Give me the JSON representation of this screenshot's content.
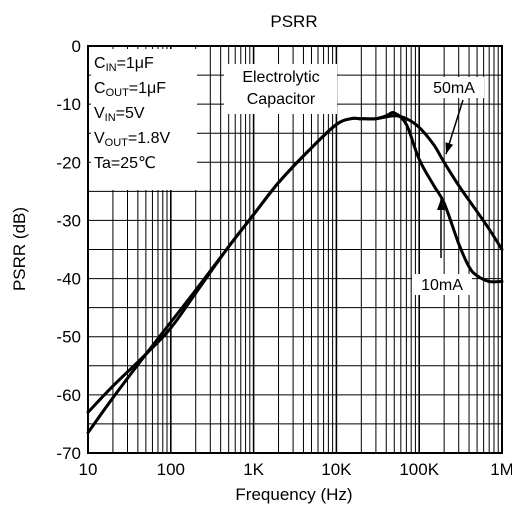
{
  "chart_data": {
    "type": "line",
    "title": "PSRR",
    "xlabel": "Frequency (Hz)",
    "ylabel": "PSRR (dB)",
    "x_scale": "log",
    "xlim": [
      10,
      1000000
    ],
    "ylim": [
      -70,
      0
    ],
    "grid": true,
    "x_ticks": [
      10,
      100,
      1000,
      10000,
      100000,
      1000000
    ],
    "x_tick_labels": [
      "10",
      "100",
      "1K",
      "10K",
      "100K",
      "1M"
    ],
    "y_ticks": [
      0,
      -10,
      -20,
      -30,
      -40,
      -50,
      -60,
      -70
    ],
    "y_tick_labels": [
      "0",
      "-10",
      "-20",
      "-30",
      "-40",
      "-50",
      "-60",
      "-70"
    ],
    "conditions": [
      {
        "base": "C",
        "sub": "IN",
        "rest": "=1μF"
      },
      {
        "base": "C",
        "sub": "OUT",
        "rest": "=1μF"
      },
      {
        "base": "V",
        "sub": "IN",
        "rest": "=5V"
      },
      {
        "base": "V",
        "sub": "OUT",
        "rest": "=1.8V"
      },
      {
        "base": "Ta=25℃",
        "sub": "",
        "rest": ""
      }
    ],
    "annotation_lines": [
      "Electrolytic",
      "Capacitor"
    ],
    "series": [
      {
        "name": "50mA",
        "x": [
          10,
          20,
          50,
          100,
          200,
          500,
          1000,
          2000,
          5000,
          10000,
          15000,
          20000,
          30000,
          50000,
          70000,
          100000,
          150000,
          200000,
          300000,
          500000,
          700000,
          1000000
        ],
        "y": [
          -66.5,
          -60.5,
          -53,
          -47.5,
          -42,
          -34.5,
          -29,
          -23.5,
          -17.5,
          -13.5,
          -12.5,
          -12.5,
          -12.5,
          -12,
          -12.5,
          -14,
          -17,
          -20,
          -24,
          -28.5,
          -31.5,
          -35
        ]
      },
      {
        "name": "10mA",
        "x": [
          10,
          20,
          50,
          100,
          200,
          500,
          1000,
          2000,
          5000,
          10000,
          15000,
          20000,
          30000,
          40000,
          50000,
          70000,
          100000,
          150000,
          200000,
          300000,
          400000,
          500000,
          700000,
          1000000
        ],
        "y": [
          -63,
          -58.5,
          -53,
          -48.5,
          -42.5,
          -34.5,
          -29,
          -23.5,
          -17.5,
          -13.5,
          -12.5,
          -12.5,
          -12.5,
          -12,
          -11.5,
          -13.5,
          -19.5,
          -24,
          -27,
          -34,
          -38,
          -39.5,
          -40.5,
          -40.5
        ]
      }
    ]
  }
}
